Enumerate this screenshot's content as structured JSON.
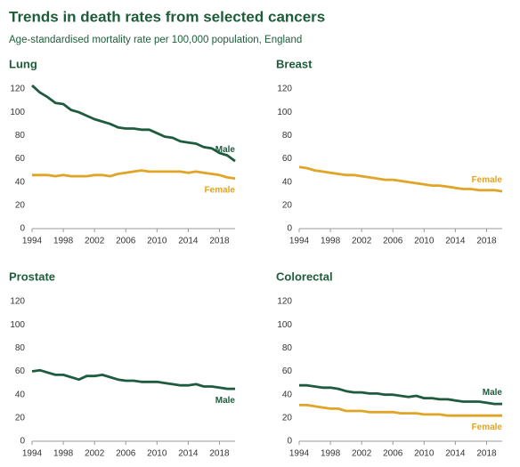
{
  "title": "Trends in death rates from selected cancers",
  "subtitle": "Age-standardised mortality rate per 100,000 population, England",
  "chart_data": [
    {
      "type": "line",
      "title": "Lung",
      "x": [
        1994,
        1995,
        1996,
        1997,
        1998,
        1999,
        2000,
        2001,
        2002,
        2003,
        2004,
        2005,
        2006,
        2007,
        2008,
        2009,
        2010,
        2011,
        2012,
        2013,
        2014,
        2015,
        2016,
        2017,
        2018,
        2019,
        2020
      ],
      "xlim": [
        1994,
        2020
      ],
      "xticks": [
        1994,
        1998,
        2002,
        2006,
        2010,
        2014,
        2018
      ],
      "ylim": [
        0,
        120
      ],
      "yticks": [
        0,
        20,
        40,
        60,
        80,
        100,
        120
      ],
      "series": [
        {
          "name": "Male",
          "color": "#1f5c3f",
          "values": [
            123,
            117,
            113,
            108,
            107,
            102,
            100,
            97,
            94,
            92,
            90,
            87,
            86,
            86,
            85,
            85,
            82,
            79,
            78,
            75,
            74,
            73,
            70,
            69,
            65,
            63,
            58
          ]
        },
        {
          "name": "Female",
          "color": "#e0a526",
          "values": [
            46,
            46,
            46,
            45,
            46,
            45,
            45,
            45,
            46,
            46,
            45,
            47,
            48,
            49,
            50,
            49,
            49,
            49,
            49,
            49,
            48,
            49,
            48,
            47,
            46,
            44,
            43
          ]
        }
      ]
    },
    {
      "type": "line",
      "title": "Breast",
      "x": [
        1994,
        1995,
        1996,
        1997,
        1998,
        1999,
        2000,
        2001,
        2002,
        2003,
        2004,
        2005,
        2006,
        2007,
        2008,
        2009,
        2010,
        2011,
        2012,
        2013,
        2014,
        2015,
        2016,
        2017,
        2018,
        2019,
        2020
      ],
      "xlim": [
        1994,
        2020
      ],
      "xticks": [
        1994,
        1998,
        2002,
        2006,
        2010,
        2014,
        2018
      ],
      "ylim": [
        0,
        120
      ],
      "yticks": [
        0,
        20,
        40,
        60,
        80,
        100,
        120
      ],
      "series": [
        {
          "name": "Female",
          "color": "#e0a526",
          "values": [
            53,
            52,
            50,
            49,
            48,
            47,
            46,
            46,
            45,
            44,
            43,
            42,
            42,
            41,
            40,
            39,
            38,
            37,
            37,
            36,
            35,
            34,
            34,
            33,
            33,
            33,
            32
          ]
        }
      ]
    },
    {
      "type": "line",
      "title": "Prostate",
      "x": [
        1994,
        1995,
        1996,
        1997,
        1998,
        1999,
        2000,
        2001,
        2002,
        2003,
        2004,
        2005,
        2006,
        2007,
        2008,
        2009,
        2010,
        2011,
        2012,
        2013,
        2014,
        2015,
        2016,
        2017,
        2018,
        2019,
        2020
      ],
      "xlim": [
        1994,
        2020
      ],
      "xticks": [
        1994,
        1998,
        2002,
        2006,
        2010,
        2014,
        2018
      ],
      "ylim": [
        0,
        120
      ],
      "yticks": [
        0,
        20,
        40,
        60,
        80,
        100,
        120
      ],
      "series": [
        {
          "name": "Male",
          "color": "#1f5c3f",
          "values": [
            60,
            61,
            59,
            57,
            57,
            55,
            53,
            56,
            56,
            57,
            55,
            53,
            52,
            52,
            51,
            51,
            51,
            50,
            49,
            48,
            48,
            49,
            47,
            47,
            46,
            45,
            45
          ]
        }
      ]
    },
    {
      "type": "line",
      "title": "Colorectal",
      "x": [
        1994,
        1995,
        1996,
        1997,
        1998,
        1999,
        2000,
        2001,
        2002,
        2003,
        2004,
        2005,
        2006,
        2007,
        2008,
        2009,
        2010,
        2011,
        2012,
        2013,
        2014,
        2015,
        2016,
        2017,
        2018,
        2019,
        2020
      ],
      "xlim": [
        1994,
        2020
      ],
      "xticks": [
        1994,
        1998,
        2002,
        2006,
        2010,
        2014,
        2018
      ],
      "ylim": [
        0,
        120
      ],
      "yticks": [
        0,
        20,
        40,
        60,
        80,
        100,
        120
      ],
      "series": [
        {
          "name": "Male",
          "color": "#1f5c3f",
          "values": [
            48,
            48,
            47,
            46,
            46,
            45,
            43,
            42,
            42,
            41,
            41,
            40,
            40,
            39,
            38,
            39,
            37,
            37,
            36,
            36,
            35,
            34,
            34,
            34,
            33,
            32,
            32
          ]
        },
        {
          "name": "Female",
          "color": "#e0a526",
          "values": [
            31,
            31,
            30,
            29,
            28,
            28,
            26,
            26,
            26,
            25,
            25,
            25,
            25,
            24,
            24,
            24,
            23,
            23,
            23,
            22,
            22,
            22,
            22,
            22,
            22,
            22,
            22
          ]
        }
      ]
    }
  ]
}
